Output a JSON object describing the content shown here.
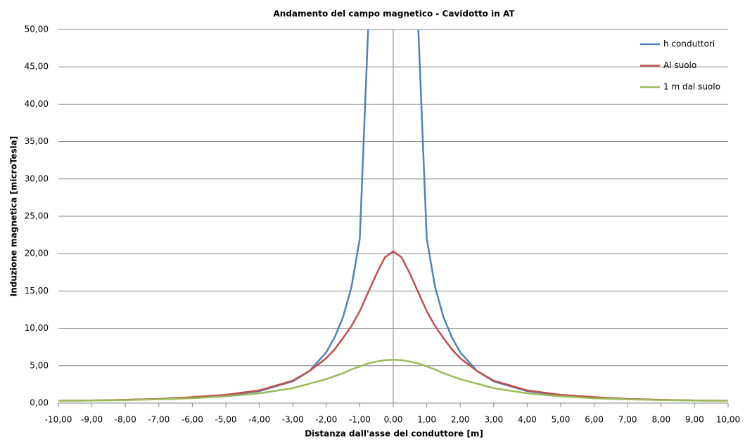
{
  "chart_data": {
    "type": "line",
    "title": "Andamento  del campo magnetico  - Cavidotto  in AT",
    "xlabel": "Distanza  dall'asse del conduttore [m]",
    "ylabel": "Induzione magnetica  [microTesla]",
    "x": [
      -10,
      -9,
      -8,
      -7,
      -6,
      -5,
      -4,
      -3,
      -2.5,
      -2,
      -1.75,
      -1.5,
      -1.25,
      -1,
      -0.75,
      -0.5,
      -0.25,
      0,
      0.25,
      0.5,
      0.75,
      1,
      1.25,
      1.5,
      1.75,
      2,
      2.5,
      3,
      4,
      5,
      6,
      7,
      8,
      9,
      10
    ],
    "series": [
      {
        "name": "h conduttori",
        "color": "#4f81bd",
        "values": [
          0.3,
          0.35,
          0.42,
          0.55,
          0.75,
          1.05,
          1.6,
          2.9,
          4.3,
          6.8,
          8.8,
          11.5,
          15.5,
          22,
          50,
          null,
          null,
          null,
          null,
          null,
          50,
          22,
          15.5,
          11.5,
          8.8,
          6.8,
          4.3,
          2.9,
          1.6,
          1.05,
          0.75,
          0.55,
          0.42,
          0.35,
          0.3
        ]
      },
      {
        "name": "Al suolo",
        "color": "#c0504d",
        "values": [
          0.3,
          0.35,
          0.45,
          0.55,
          0.8,
          1.1,
          1.7,
          3.0,
          4.3,
          6.0,
          7.2,
          8.7,
          10.3,
          12.3,
          14.8,
          17.3,
          19.5,
          20.3,
          19.5,
          17.3,
          14.8,
          12.3,
          10.3,
          8.7,
          7.2,
          6.0,
          4.3,
          3.0,
          1.7,
          1.1,
          0.8,
          0.55,
          0.45,
          0.35,
          0.3
        ]
      },
      {
        "name": "1 m dal suolo",
        "color": "#9bbb59",
        "values": [
          0.3,
          0.35,
          0.4,
          0.5,
          0.65,
          0.9,
          1.3,
          2.0,
          2.6,
          3.2,
          3.6,
          4.0,
          4.5,
          4.9,
          5.3,
          5.55,
          5.75,
          5.8,
          5.75,
          5.55,
          5.3,
          4.9,
          4.5,
          4.0,
          3.6,
          3.2,
          2.6,
          2.0,
          1.3,
          0.9,
          0.65,
          0.5,
          0.4,
          0.35,
          0.3
        ]
      }
    ],
    "xlim": [
      -10,
      10
    ],
    "xticks": [
      {
        "value": -10,
        "label": "-10,00"
      },
      {
        "value": -9,
        "label": "-9,00"
      },
      {
        "value": -8,
        "label": "-8,00"
      },
      {
        "value": -7,
        "label": "-7,00"
      },
      {
        "value": -6,
        "label": "-6,00"
      },
      {
        "value": -5,
        "label": "-5,00"
      },
      {
        "value": -4,
        "label": "-4,00"
      },
      {
        "value": -3,
        "label": "-3,00"
      },
      {
        "value": -2,
        "label": "-2,00"
      },
      {
        "value": -1,
        "label": "-1,00"
      },
      {
        "value": 0,
        "label": "0,00"
      },
      {
        "value": 1,
        "label": "1,00"
      },
      {
        "value": 2,
        "label": "2,00"
      },
      {
        "value": 3,
        "label": "3,00"
      },
      {
        "value": 4,
        "label": "4,00"
      },
      {
        "value": 5,
        "label": "5,00"
      },
      {
        "value": 6,
        "label": "6,00"
      },
      {
        "value": 7,
        "label": "7,00"
      },
      {
        "value": 8,
        "label": "8,00"
      },
      {
        "value": 9,
        "label": "9,00"
      },
      {
        "value": 10,
        "label": "10,00"
      }
    ],
    "ylim": [
      0,
      50
    ],
    "yticks": [
      {
        "value": 0,
        "label": "0,00"
      },
      {
        "value": 5,
        "label": "5,00"
      },
      {
        "value": 10,
        "label": "10,00"
      },
      {
        "value": 15,
        "label": "15,00"
      },
      {
        "value": 20,
        "label": "20,00"
      },
      {
        "value": 25,
        "label": "25,00"
      },
      {
        "value": 30,
        "label": "30,00"
      },
      {
        "value": 35,
        "label": "35,00"
      },
      {
        "value": 40,
        "label": "40,00"
      },
      {
        "value": 45,
        "label": "45,00"
      },
      {
        "value": 50,
        "label": "50,00"
      }
    ],
    "grid": true,
    "legend": "right"
  }
}
